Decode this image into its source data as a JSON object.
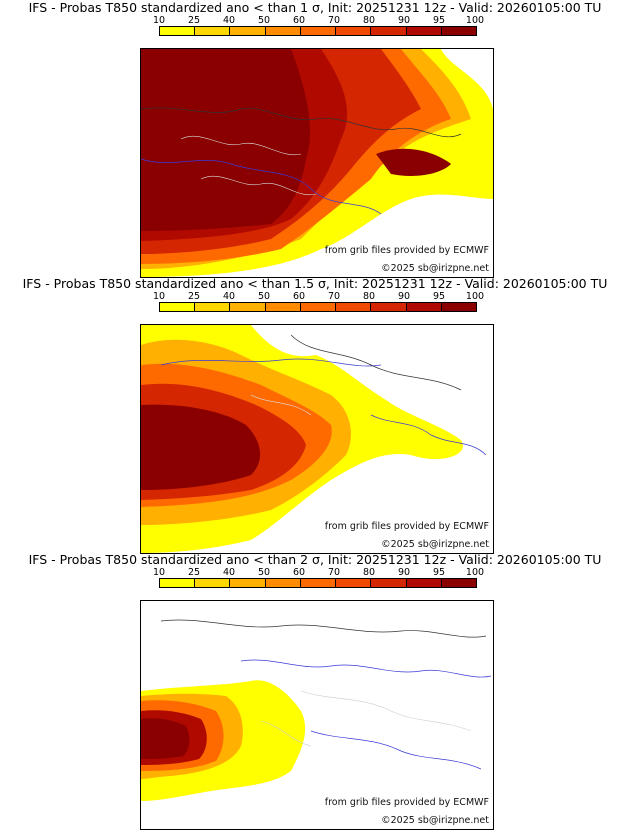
{
  "colorbar": {
    "ticks": [
      "10",
      "25",
      "40",
      "50",
      "60",
      "70",
      "80",
      "90",
      "95",
      "100"
    ],
    "colors": [
      "#ffff00",
      "#ffd700",
      "#ffb000",
      "#ff8c00",
      "#ff6a00",
      "#f04a00",
      "#d42600",
      "#b00a00",
      "#8a0000"
    ]
  },
  "panels": [
    {
      "title": "IFS - Probas T850  standardized ano < than 1 σ, Init: 20251231 12z - Valid: 20260105:00 TU",
      "threshold_sigma": 1,
      "source_credit": "from grib files provided by ECMWF",
      "copyright": "©2025 sb@irizpne.net"
    },
    {
      "title": "IFS - Probas T850  standardized ano < than 1.5 σ, Init: 20251231 12z - Valid: 20260105:00 TU",
      "threshold_sigma": 1.5,
      "source_credit": "from grib files provided by ECMWF",
      "copyright": "©2025 sb@irizpne.net"
    },
    {
      "title": "IFS - Probas T850  standardized ano < than 2 σ, Init: 20251231 12z - Valid: 20260105:00 TU",
      "threshold_sigma": 2,
      "source_credit": "from grib files provided by ECMWF",
      "copyright": "©2025 sb@irizpne.net"
    }
  ]
}
